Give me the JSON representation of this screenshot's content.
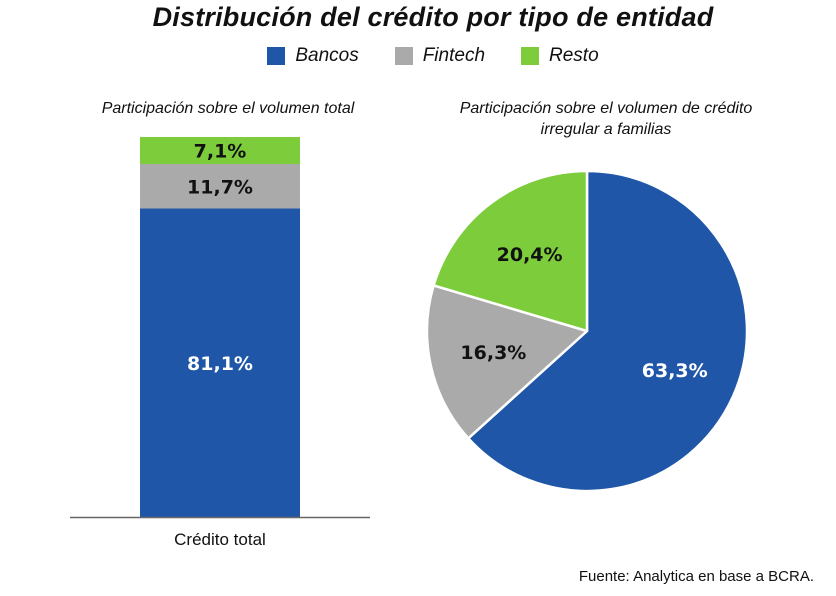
{
  "title": "Distribución del crédito por tipo de entidad",
  "legend": [
    {
      "label": "Bancos",
      "color": "#1f56a8"
    },
    {
      "label": "Fintech",
      "color": "#aaaaaa"
    },
    {
      "label": "Resto",
      "color": "#7ccc3c"
    }
  ],
  "source": "Fuente: Analytica en base a BCRA.",
  "chart_data": [
    {
      "type": "bar",
      "stacked": true,
      "title": "Participación sobre el volumen total",
      "categories": [
        "Crédito total"
      ],
      "series": [
        {
          "name": "Bancos",
          "values": [
            81.1
          ],
          "label": "81,1%"
        },
        {
          "name": "Fintech",
          "values": [
            11.7
          ],
          "label": "11,7%"
        },
        {
          "name": "Resto",
          "values": [
            7.1
          ],
          "label": "7,1%"
        }
      ],
      "grid": false
    },
    {
      "type": "pie",
      "title": "Participación sobre el volumen de crédito irregular a familias",
      "slices": [
        {
          "name": "Bancos",
          "value": 63.3,
          "label": "63,3%"
        },
        {
          "name": "Fintech",
          "value": 16.3,
          "label": "16,3%"
        },
        {
          "name": "Resto",
          "value": 20.4,
          "label": "20,4%"
        }
      ]
    }
  ]
}
